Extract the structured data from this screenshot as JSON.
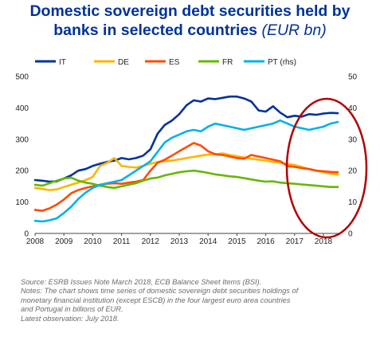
{
  "title": {
    "line1": "Domestic sovereign debt securities held by",
    "line2_main": "banks in selected countries",
    "line2_unit": "(EUR bn)"
  },
  "chart_data": {
    "type": "line",
    "x_start": 2008.0,
    "x_step": 0.25,
    "x_range": [
      2008,
      2018.58
    ],
    "x_ticks": [
      "2008",
      "2009",
      "2010",
      "2011",
      "2012",
      "2013",
      "2014",
      "2015",
      "2016",
      "2017",
      "2018"
    ],
    "y_left": {
      "range": [
        0,
        500
      ],
      "ticks": [
        "0",
        "100",
        "200",
        "300",
        "400",
        "500"
      ]
    },
    "y_right": {
      "range": [
        0,
        50
      ],
      "ticks": [
        "0",
        "10",
        "20",
        "30",
        "40",
        "50"
      ]
    },
    "grid": false,
    "legend_position": "top",
    "series": [
      {
        "name": "IT",
        "color": "#003299",
        "axis": "left",
        "values": [
          170,
          168,
          165,
          166,
          175,
          185,
          200,
          205,
          215,
          222,
          228,
          232,
          240,
          236,
          240,
          248,
          268,
          318,
          346,
          360,
          380,
          408,
          424,
          420,
          430,
          428,
          432,
          436,
          436,
          430,
          420,
          392,
          388,
          405,
          385,
          370,
          375,
          372,
          380,
          378,
          382,
          384,
          383
        ]
      },
      {
        "name": "DE",
        "color": "#FFB400",
        "axis": "left",
        "values": [
          145,
          142,
          138,
          140,
          148,
          155,
          162,
          170,
          180,
          215,
          225,
          240,
          215,
          212,
          210,
          215,
          222,
          228,
          230,
          232,
          236,
          240,
          244,
          248,
          251,
          252,
          255,
          250,
          246,
          242,
          238,
          235,
          232,
          228,
          225,
          222,
          218,
          212,
          205,
          200,
          195,
          190,
          188
        ]
      },
      {
        "name": "ES",
        "color": "#FF4B00",
        "axis": "left",
        "values": [
          75,
          72,
          80,
          92,
          108,
          128,
          138,
          145,
          150,
          155,
          158,
          160,
          158,
          162,
          165,
          170,
          200,
          225,
          235,
          248,
          262,
          275,
          288,
          280,
          262,
          252,
          250,
          245,
          240,
          238,
          250,
          245,
          240,
          235,
          230,
          215,
          212,
          208,
          205,
          200,
          198,
          196,
          195
        ]
      },
      {
        "name": "FR",
        "color": "#65B800",
        "axis": "left",
        "values": [
          155,
          152,
          160,
          168,
          175,
          178,
          168,
          162,
          158,
          152,
          148,
          145,
          150,
          155,
          160,
          168,
          175,
          178,
          185,
          190,
          195,
          198,
          200,
          197,
          193,
          188,
          185,
          182,
          180,
          176,
          172,
          168,
          165,
          166,
          162,
          160,
          158,
          156,
          154,
          152,
          150,
          148,
          148
        ]
      },
      {
        "name": "PT (rhs)",
        "color": "#00B1EA",
        "axis": "right",
        "values": [
          4,
          3.8,
          4.2,
          4.8,
          6.5,
          8.5,
          11,
          13,
          14.5,
          15.5,
          16,
          16.5,
          17,
          18.5,
          20,
          21.5,
          23,
          26,
          29,
          30.5,
          31.5,
          32.5,
          33,
          32.5,
          34,
          35,
          34.5,
          34,
          33.5,
          33,
          33.5,
          34,
          34.5,
          35,
          36,
          35,
          34,
          33.5,
          33,
          33.5,
          34,
          35,
          35.5
        ]
      }
    ]
  },
  "notes": [
    "Source: ESRB Issues Note March 2018, ECB Balance Sheet Items (BSI).",
    "Notes: The chart shows time series of domestic sovereign debt securities holdings of",
    "monetary financial institution (except ESCB) in the four largest euro area countries",
    "and Portugal in billions of EUR.",
    "Latest observation: July 2018."
  ],
  "annotation": {
    "shape": "ellipse",
    "color": "#B20000"
  }
}
